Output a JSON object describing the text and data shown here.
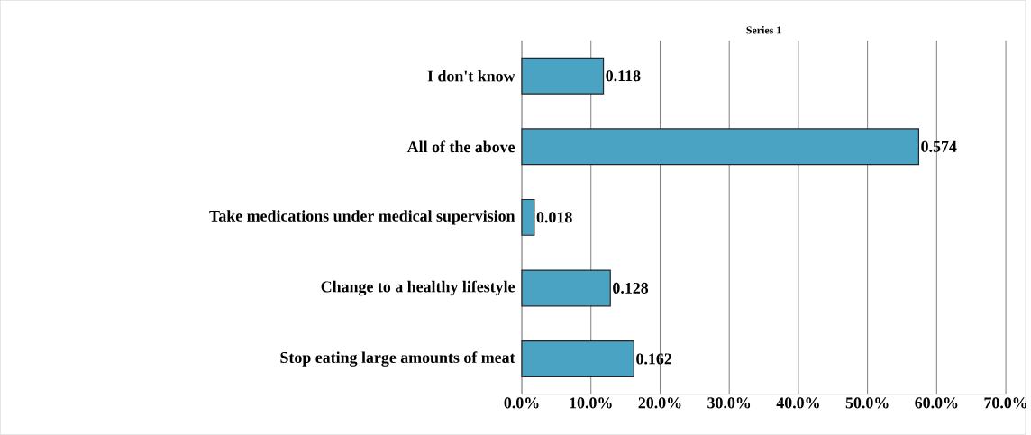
{
  "chart_data": {
    "type": "bar",
    "orientation": "horizontal",
    "title": "Series 1",
    "categories": [
      "I don't know",
      "All of the above",
      "Take medications under medical supervision",
      "Change to a healthy lifestyle",
      "Stop eating large amounts of meat"
    ],
    "values": [
      0.118,
      0.574,
      0.018,
      0.128,
      0.162
    ],
    "color": "#4ba3c3",
    "xlim": [
      0,
      0.7
    ],
    "xticks": [
      {
        "value": 0,
        "label": "0.0%"
      },
      {
        "value": 0.1,
        "label": "10.0%"
      },
      {
        "value": 0.2,
        "label": "20.0%"
      },
      {
        "value": 0.3,
        "label": "30.0%"
      },
      {
        "value": 0.4,
        "label": "40.0%"
      },
      {
        "value": 0.5,
        "label": "50.0%"
      },
      {
        "value": 0.6,
        "label": "60.0%"
      },
      {
        "value": 0.7,
        "label": "70.0%"
      }
    ],
    "grid": "x",
    "data_labels": true
  }
}
